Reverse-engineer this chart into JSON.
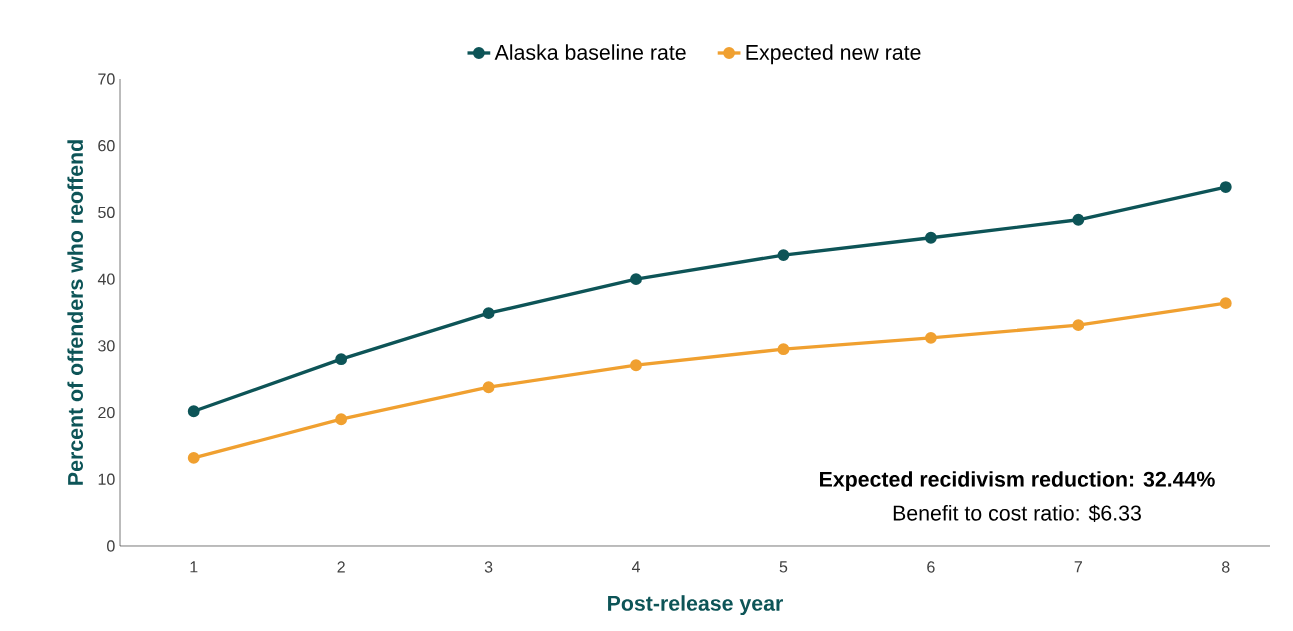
{
  "chart_data": {
    "type": "line",
    "xlabel": "Post-release year",
    "ylabel": "Percent of offenders who reoffend",
    "categories": [
      "1",
      "2",
      "3",
      "4",
      "5",
      "6",
      "7",
      "8"
    ],
    "series": [
      {
        "name": "Alaska baseline rate",
        "color": "#0d5457",
        "values": [
          20.2,
          28.0,
          34.9,
          40.0,
          43.6,
          46.2,
          48.9,
          53.8
        ]
      },
      {
        "name": "Expected new rate",
        "color": "#f0a030",
        "values": [
          13.2,
          19.0,
          23.8,
          27.1,
          29.5,
          31.2,
          33.1,
          36.4
        ]
      }
    ],
    "ylim": [
      0,
      70
    ],
    "yticks": [
      0,
      10,
      20,
      30,
      40,
      50,
      60,
      70
    ],
    "grid": false,
    "legend": "top",
    "marker": "circle",
    "line_style": "solid",
    "annotations": [
      "**Expected recidivism reduction: 32.44%**",
      "Benefit to cost ratio: $6.33"
    ]
  }
}
